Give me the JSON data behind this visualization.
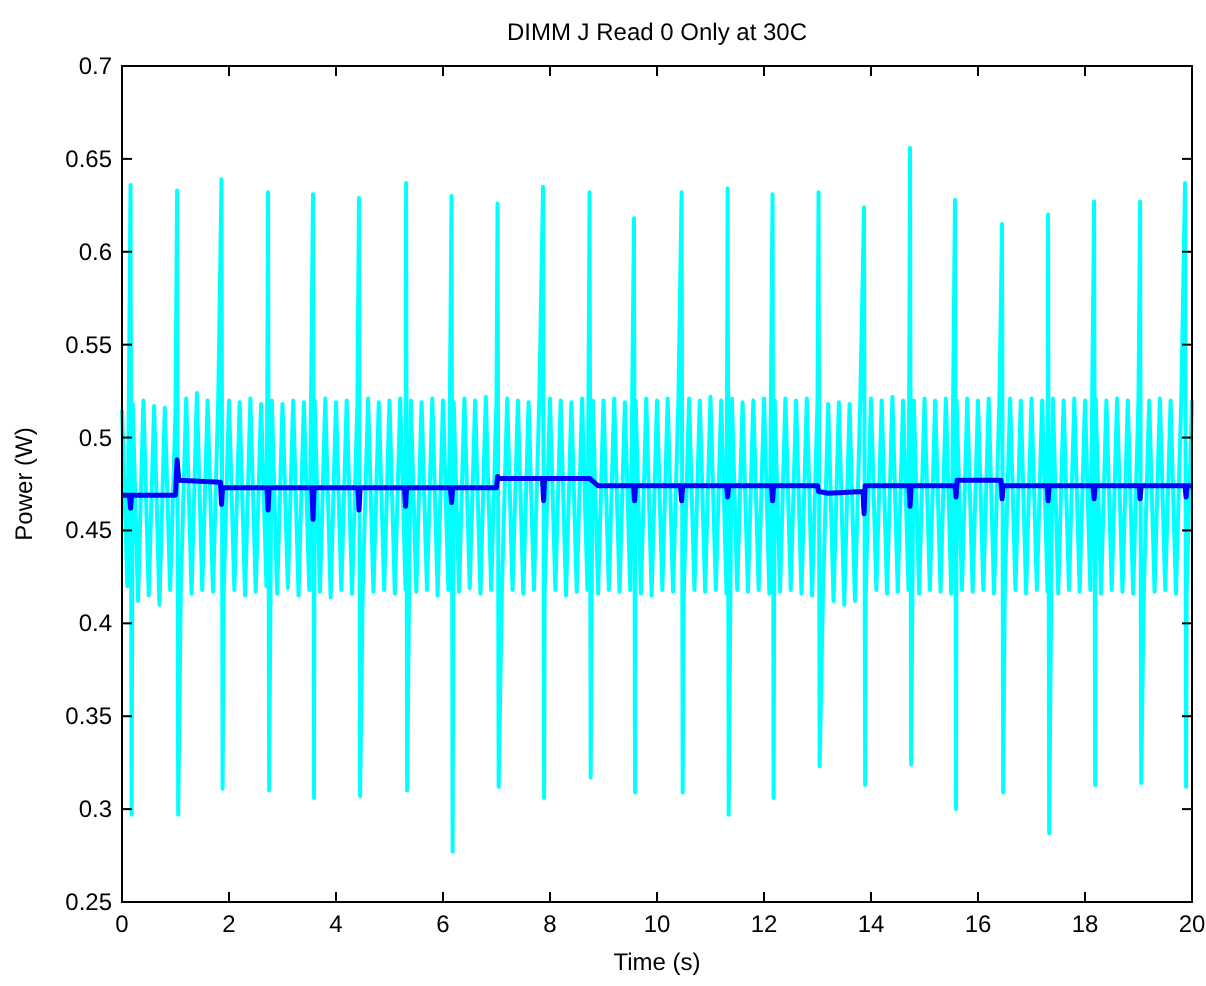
{
  "chart_data": {
    "type": "line",
    "title": "DIMM J Read 0 Only at 30C",
    "xlabel": "Time (s)",
    "ylabel": "Power (W)",
    "xlim": [
      0,
      20
    ],
    "xticks": [
      0,
      2,
      4,
      6,
      8,
      10,
      12,
      14,
      16,
      18,
      20
    ],
    "ylim": [
      0.25,
      0.7
    ],
    "yticks": [
      0.25,
      0.3,
      0.35,
      0.4,
      0.45,
      0.5,
      0.55,
      0.6,
      0.65,
      0.7
    ],
    "grid": false,
    "series": [
      {
        "color": "#00ffff",
        "x": [
          0,
          0.1,
          0.16,
          0.18,
          0.2,
          0.3,
          0.4,
          0.5,
          0.6,
          0.7,
          0.8,
          0.9,
          1.0,
          1.03,
          1.05,
          1.1,
          1.2,
          1.3,
          1.4,
          1.5,
          1.6,
          1.7,
          1.8,
          1.86,
          1.88,
          1.9,
          2.0,
          2.1,
          2.2,
          2.3,
          2.4,
          2.5,
          2.6,
          2.7,
          2.73,
          2.75,
          2.8,
          2.9,
          3.0,
          3.1,
          3.2,
          3.3,
          3.4,
          3.5,
          3.57,
          3.59,
          3.6,
          3.7,
          3.8,
          3.9,
          4.0,
          4.1,
          4.2,
          4.3,
          4.4,
          4.43,
          4.45,
          4.5,
          4.6,
          4.7,
          4.8,
          4.9,
          5.0,
          5.1,
          5.2,
          5.3,
          5.31,
          5.33,
          5.4,
          5.5,
          5.6,
          5.7,
          5.8,
          5.9,
          6.0,
          6.1,
          6.16,
          6.18,
          6.2,
          6.3,
          6.4,
          6.5,
          6.6,
          6.7,
          6.8,
          6.9,
          7.0,
          7.02,
          7.04,
          7.1,
          7.2,
          7.3,
          7.4,
          7.5,
          7.6,
          7.7,
          7.8,
          7.87,
          7.89,
          7.9,
          8.0,
          8.1,
          8.2,
          8.3,
          8.4,
          8.5,
          8.6,
          8.7,
          8.74,
          8.76,
          8.8,
          8.9,
          9.0,
          9.1,
          9.2,
          9.3,
          9.4,
          9.5,
          9.57,
          9.59,
          9.6,
          9.7,
          9.8,
          9.9,
          10.0,
          10.1,
          10.2,
          10.3,
          10.4,
          10.46,
          10.48,
          10.5,
          10.6,
          10.7,
          10.8,
          10.9,
          11.0,
          11.1,
          11.2,
          11.3,
          11.32,
          11.34,
          11.4,
          11.5,
          11.6,
          11.7,
          11.8,
          11.9,
          12.0,
          12.1,
          12.16,
          12.18,
          12.2,
          12.3,
          12.4,
          12.5,
          12.6,
          12.7,
          12.8,
          12.9,
          13.0,
          13.02,
          13.04,
          13.1,
          13.2,
          13.3,
          13.4,
          13.5,
          13.6,
          13.7,
          13.8,
          13.87,
          13.89,
          13.9,
          14.0,
          14.1,
          14.2,
          14.3,
          14.4,
          14.5,
          14.6,
          14.7,
          14.73,
          14.75,
          14.8,
          14.9,
          15.0,
          15.1,
          15.2,
          15.3,
          15.4,
          15.5,
          15.57,
          15.59,
          15.6,
          15.7,
          15.8,
          15.9,
          16.0,
          16.1,
          16.2,
          16.3,
          16.4,
          16.45,
          16.47,
          16.5,
          16.6,
          16.7,
          16.8,
          16.9,
          17.0,
          17.1,
          17.2,
          17.3,
          17.31,
          17.33,
          17.4,
          17.5,
          17.6,
          17.7,
          17.8,
          17.9,
          18.0,
          18.1,
          18.17,
          18.19,
          18.2,
          18.3,
          18.4,
          18.5,
          18.6,
          18.7,
          18.8,
          18.9,
          19.0,
          19.03,
          19.05,
          19.1,
          19.2,
          19.3,
          19.4,
          19.5,
          19.6,
          19.7,
          19.8,
          19.87,
          19.89,
          19.9,
          20.0
        ],
        "values": [
          0.515,
          0.42,
          0.636,
          0.297,
          0.518,
          0.412,
          0.52,
          0.415,
          0.517,
          0.41,
          0.516,
          0.418,
          0.514,
          0.633,
          0.297,
          0.42,
          0.521,
          0.416,
          0.524,
          0.418,
          0.52,
          0.417,
          0.522,
          0.639,
          0.311,
          0.415,
          0.52,
          0.418,
          0.519,
          0.415,
          0.521,
          0.417,
          0.518,
          0.42,
          0.632,
          0.31,
          0.52,
          0.416,
          0.518,
          0.419,
          0.52,
          0.415,
          0.519,
          0.418,
          0.631,
          0.306,
          0.52,
          0.417,
          0.521,
          0.414,
          0.519,
          0.418,
          0.52,
          0.416,
          0.518,
          0.629,
          0.307,
          0.419,
          0.521,
          0.417,
          0.519,
          0.418,
          0.52,
          0.416,
          0.521,
          0.418,
          0.637,
          0.31,
          0.52,
          0.417,
          0.519,
          0.418,
          0.521,
          0.415,
          0.52,
          0.418,
          0.63,
          0.277,
          0.519,
          0.417,
          0.521,
          0.419,
          0.52,
          0.416,
          0.522,
          0.418,
          0.52,
          0.626,
          0.312,
          0.417,
          0.521,
          0.418,
          0.52,
          0.416,
          0.519,
          0.418,
          0.52,
          0.635,
          0.306,
          0.417,
          0.521,
          0.418,
          0.52,
          0.415,
          0.519,
          0.417,
          0.521,
          0.418,
          0.632,
          0.317,
          0.52,
          0.416,
          0.52,
          0.418,
          0.521,
          0.417,
          0.519,
          0.418,
          0.618,
          0.309,
          0.52,
          0.416,
          0.521,
          0.415,
          0.52,
          0.418,
          0.521,
          0.417,
          0.52,
          0.632,
          0.309,
          0.416,
          0.521,
          0.418,
          0.52,
          0.417,
          0.522,
          0.418,
          0.52,
          0.416,
          0.634,
          0.297,
          0.521,
          0.418,
          0.519,
          0.417,
          0.52,
          0.418,
          0.521,
          0.416,
          0.631,
          0.306,
          0.52,
          0.417,
          0.521,
          0.418,
          0.52,
          0.416,
          0.521,
          0.415,
          0.519,
          0.632,
          0.323,
          0.413,
          0.518,
          0.412,
          0.519,
          0.41,
          0.518,
          0.412,
          0.52,
          0.624,
          0.313,
          0.415,
          0.521,
          0.418,
          0.52,
          0.416,
          0.522,
          0.417,
          0.52,
          0.418,
          0.656,
          0.324,
          0.52,
          0.416,
          0.521,
          0.418,
          0.52,
          0.417,
          0.521,
          0.416,
          0.628,
          0.3,
          0.52,
          0.418,
          0.521,
          0.417,
          0.52,
          0.418,
          0.521,
          0.416,
          0.52,
          0.615,
          0.309,
          0.417,
          0.521,
          0.418,
          0.52,
          0.416,
          0.521,
          0.418,
          0.52,
          0.417,
          0.62,
          0.287,
          0.521,
          0.416,
          0.52,
          0.418,
          0.521,
          0.417,
          0.52,
          0.418,
          0.627,
          0.313,
          0.521,
          0.416,
          0.52,
          0.418,
          0.521,
          0.417,
          0.52,
          0.416,
          0.521,
          0.627,
          0.314,
          0.418,
          0.52,
          0.417,
          0.521,
          0.418,
          0.52,
          0.416,
          0.521,
          0.637,
          0.312,
          0.418,
          0.52
        ]
      },
      {
        "color": "#0000ff",
        "x": [
          0,
          0.14,
          0.16,
          0.18,
          1.0,
          1.03,
          1.06,
          1.84,
          1.86,
          1.88,
          2.71,
          2.73,
          2.75,
          3.55,
          3.57,
          3.59,
          4.41,
          4.43,
          4.45,
          5.28,
          5.3,
          5.32,
          6.14,
          6.16,
          6.18,
          7.0,
          7.02,
          7.04,
          7.86,
          7.88,
          7.9,
          8.74,
          8.9,
          9.56,
          9.58,
          9.6,
          10.44,
          10.46,
          10.48,
          11.3,
          11.32,
          11.34,
          12.14,
          12.16,
          12.18,
          13.0,
          13.02,
          13.2,
          13.85,
          13.87,
          13.89,
          14.71,
          14.73,
          14.75,
          15.57,
          15.59,
          15.61,
          16.43,
          16.45,
          16.47,
          17.29,
          17.31,
          17.33,
          18.15,
          18.17,
          18.19,
          19.01,
          19.03,
          19.05,
          19.87,
          19.89,
          19.91,
          20
        ],
        "values": [
          0.469,
          0.469,
          0.462,
          0.469,
          0.469,
          0.488,
          0.477,
          0.476,
          0.464,
          0.473,
          0.473,
          0.461,
          0.473,
          0.473,
          0.456,
          0.473,
          0.473,
          0.461,
          0.473,
          0.473,
          0.463,
          0.473,
          0.473,
          0.465,
          0.473,
          0.473,
          0.479,
          0.478,
          0.478,
          0.466,
          0.478,
          0.478,
          0.474,
          0.474,
          0.466,
          0.474,
          0.474,
          0.466,
          0.474,
          0.474,
          0.468,
          0.474,
          0.474,
          0.466,
          0.474,
          0.474,
          0.471,
          0.47,
          0.471,
          0.459,
          0.474,
          0.474,
          0.463,
          0.474,
          0.474,
          0.468,
          0.477,
          0.477,
          0.467,
          0.474,
          0.474,
          0.466,
          0.474,
          0.474,
          0.467,
          0.474,
          0.474,
          0.467,
          0.474,
          0.474,
          0.468,
          0.474,
          0.474
        ]
      }
    ]
  }
}
